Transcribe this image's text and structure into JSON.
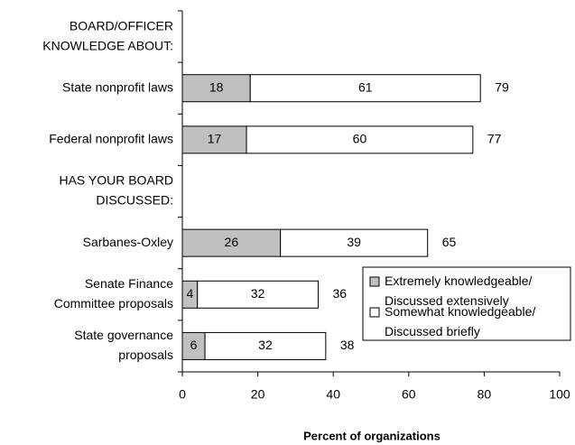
{
  "chart_data": {
    "type": "stacked-barh",
    "x_label": "Percent of organizations",
    "categories": [
      [
        "BOARD/OFFICER",
        "KNOWLEDGE ABOUT:"
      ],
      [
        "State nonprofit laws"
      ],
      [
        "Federal nonprofit laws"
      ],
      [
        "HAS YOUR BOARD",
        "DISCUSSED:"
      ],
      [
        "Sarbanes-Oxley"
      ],
      [
        "Senate Finance",
        "Committee proposals"
      ],
      [
        "State governance",
        "proposals"
      ]
    ],
    "series": [
      {
        "name": "Extremely knowledgeable/Discussed extensively",
        "color": "#c0c0c0",
        "values": [
          null,
          18,
          17,
          null,
          26,
          4,
          6
        ]
      },
      {
        "name": "Somewhat knowledgeable/Discussed briefly",
        "color": "#ffffff",
        "values": [
          null,
          61,
          60,
          null,
          39,
          32,
          32
        ]
      }
    ],
    "totals": [
      null,
      79,
      77,
      null,
      65,
      36,
      38
    ],
    "xlim": [
      0,
      100
    ],
    "xticks": [
      0,
      20,
      40,
      60,
      80,
      100
    ],
    "legend": "lower right"
  }
}
